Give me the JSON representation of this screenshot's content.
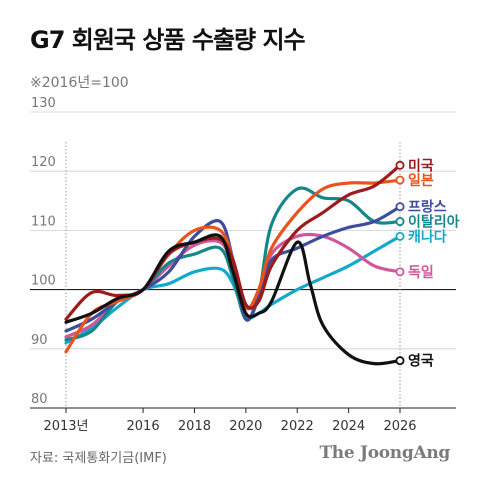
{
  "title": "G7 회원국 상품 수출량 지수",
  "subtitle": "※2016년=100",
  "source": "자료: 국제통화기금(IMF)",
  "logo": "The JoongAng",
  "chart_data": {
    "type": "line",
    "title": "G7 회원국 상품 수출량 지수",
    "subtitle": "※2016년=100",
    "xlabel": "",
    "ylabel": "",
    "xlim": [
      2013,
      2026
    ],
    "ylim": [
      80,
      130
    ],
    "y_ticks": [
      130,
      120,
      110,
      100,
      90,
      80
    ],
    "x_ticks": [
      "2013년",
      "2016",
      "2018",
      "2020",
      "2022",
      "2024",
      "2026"
    ],
    "x_tick_values": [
      2013,
      2016,
      2018,
      2020,
      2022,
      2024,
      2026
    ],
    "reference_line": 100,
    "grid": true,
    "legend": "end-labels",
    "series": [
      {
        "name": "미국",
        "color": "#9e1b1b",
        "x": [
          2013,
          2014,
          2015,
          2016,
          2017,
          2018,
          2019,
          2019.5,
          2020,
          2020.5,
          2021,
          2022,
          2023,
          2024,
          2025,
          2026
        ],
        "y": [
          95,
          99.5,
          99,
          100,
          106,
          108,
          108.5,
          105,
          97.5,
          98,
          104,
          110,
          113,
          116,
          117.5,
          121
        ]
      },
      {
        "name": "일본",
        "color": "#e8531e",
        "x": [
          2013,
          2014,
          2015,
          2016,
          2017,
          2018,
          2019,
          2019.5,
          2020,
          2020.5,
          2021,
          2022,
          2023,
          2024,
          2025,
          2026
        ],
        "y": [
          89.5,
          96,
          98,
          100,
          106,
          110,
          110,
          105,
          97,
          100,
          107,
          113,
          117,
          118,
          118,
          118.5
        ]
      },
      {
        "name": "프랑스",
        "color": "#3d4c9c",
        "x": [
          2013,
          2014,
          2015,
          2016,
          2017,
          2018,
          2019,
          2019.5,
          2020,
          2020.5,
          2021,
          2022,
          2023,
          2024,
          2025,
          2026
        ],
        "y": [
          93,
          95,
          98,
          100,
          103,
          109,
          111.5,
          105,
          95,
          99,
          105,
          107,
          109,
          110.5,
          111.5,
          114
        ]
      },
      {
        "name": "이탈리아",
        "color": "#15878a",
        "x": [
          2013,
          2014,
          2015,
          2016,
          2017,
          2018,
          2019,
          2019.5,
          2020,
          2020.5,
          2021,
          2022,
          2023,
          2024,
          2025,
          2026
        ],
        "y": [
          91.5,
          93,
          98,
          100,
          104.5,
          106,
          107,
          102,
          95,
          99,
          111,
          117,
          115.5,
          115,
          111.5,
          111.5
        ]
      },
      {
        "name": "캐나다",
        "color": "#14a9cc",
        "x": [
          2013,
          2014,
          2015,
          2016,
          2017,
          2018,
          2019,
          2019.5,
          2020,
          2020.5,
          2021,
          2022,
          2023,
          2024,
          2025,
          2026
        ],
        "y": [
          91,
          93.5,
          97,
          100,
          101,
          103,
          103.5,
          101,
          95.5,
          96,
          97.5,
          100,
          102,
          104,
          106.5,
          109
        ]
      },
      {
        "name": "독일",
        "color": "#d2569a",
        "x": [
          2013,
          2014,
          2015,
          2016,
          2017,
          2018,
          2019,
          2019.5,
          2020,
          2020.5,
          2021,
          2022,
          2023,
          2024,
          2025,
          2026
        ],
        "y": [
          92,
          94,
          98,
          100,
          104,
          107.5,
          108,
          104,
          97,
          99,
          106,
          109,
          109,
          107,
          104,
          103
        ]
      },
      {
        "name": "영국",
        "color": "#111111",
        "x": [
          2013,
          2014,
          2015,
          2016,
          2017,
          2018,
          2019,
          2019.5,
          2020,
          2020.5,
          2021,
          2022,
          2022.5,
          2023,
          2024,
          2025,
          2026
        ],
        "y": [
          94.5,
          96,
          98.5,
          100,
          106.5,
          108,
          109,
          103,
          96,
          96,
          98,
          108,
          101,
          94,
          89,
          87.5,
          88
        ]
      }
    ]
  }
}
